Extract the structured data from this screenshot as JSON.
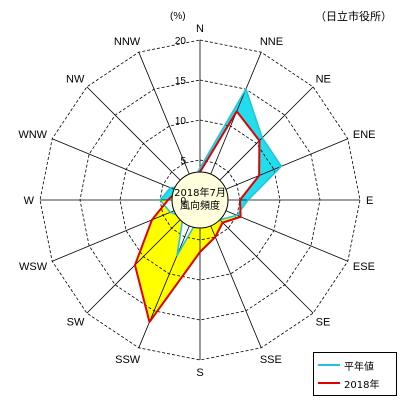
{
  "station_label": "（日立市役所）",
  "unit_label": "(%)",
  "center_label_line1": "2018年7月",
  "center_label_line2": "風向頻度",
  "legend": [
    {
      "label": "平年値",
      "color": "#22c5d8"
    },
    {
      "label": "2018年",
      "color": "#e00000"
    }
  ],
  "colors": {
    "normal_fill": "#22ddee",
    "increase_fill": "#ffff00",
    "normal_line": "#22c5d8",
    "current_line": "#e00000",
    "grid": "#000000",
    "center_fill": "#ffffdd"
  },
  "chart_data": {
    "type": "radar",
    "directions": [
      "N",
      "NNE",
      "NE",
      "ENE",
      "E",
      "ESE",
      "SE",
      "SSE",
      "S",
      "SSW",
      "SW",
      "WSW",
      "W",
      "WNW",
      "NW",
      "NNW"
    ],
    "r_ticks": [
      0,
      5,
      10,
      15,
      20
    ],
    "r_max": 20,
    "series": [
      {
        "name": "平年値",
        "values": [
          4.0,
          15.0,
          11.0,
          11.0,
          6.0,
          5.0,
          3.5,
          2.5,
          2.0,
          7.5,
          3.0,
          4.0,
          5.0,
          4.0,
          2.5,
          2.5
        ]
      },
      {
        "name": "2018年",
        "values": [
          3.5,
          12.0,
          10.5,
          8.0,
          5.0,
          5.5,
          4.0,
          5.0,
          6.5,
          16.5,
          11.5,
          6.5,
          4.0,
          3.0,
          2.0,
          2.0
        ]
      }
    ]
  }
}
